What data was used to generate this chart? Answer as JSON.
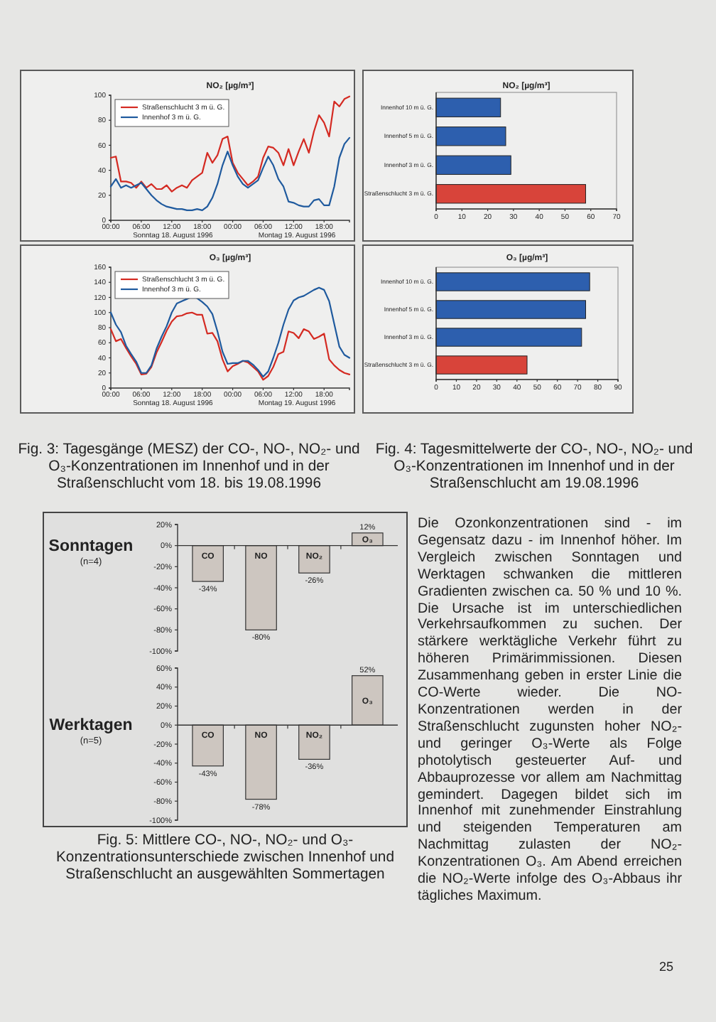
{
  "chart_data": [
    {
      "type": "line",
      "title": "NO₂ [µg/m³]",
      "x": [
        "1996-08-18T00:00",
        "1996-08-18T01:00",
        "1996-08-18T02:00",
        "1996-08-18T03:00",
        "1996-08-18T04:00",
        "1996-08-18T05:00",
        "1996-08-18T06:00",
        "1996-08-18T07:00",
        "1996-08-18T08:00",
        "1996-08-18T09:00",
        "1996-08-18T10:00",
        "1996-08-18T11:00",
        "1996-08-18T12:00",
        "1996-08-18T13:00",
        "1996-08-18T14:00",
        "1996-08-18T15:00",
        "1996-08-18T16:00",
        "1996-08-18T17:00",
        "1996-08-18T18:00",
        "1996-08-18T19:00",
        "1996-08-18T20:00",
        "1996-08-18T21:00",
        "1996-08-18T22:00",
        "1996-08-18T23:00",
        "1996-08-19T00:00",
        "1996-08-19T01:00",
        "1996-08-19T02:00",
        "1996-08-19T03:00",
        "1996-08-19T04:00",
        "1996-08-19T05:00",
        "1996-08-19T06:00",
        "1996-08-19T07:00",
        "1996-08-19T08:00",
        "1996-08-19T09:00",
        "1996-08-19T10:00",
        "1996-08-19T11:00",
        "1996-08-19T12:00",
        "1996-08-19T13:00",
        "1996-08-19T14:00",
        "1996-08-19T15:00",
        "1996-08-19T16:00",
        "1996-08-19T17:00",
        "1996-08-19T18:00",
        "1996-08-19T19:00",
        "1996-08-19T20:00",
        "1996-08-19T21:00",
        "1996-08-19T22:00",
        "1996-08-19T23:00"
      ],
      "xlim": [
        "1996-08-18T00:00",
        "1996-08-19T23:00"
      ],
      "xticks": [
        {
          "value": "1996-08-18T00:00",
          "label": "00:00"
        },
        {
          "value": "1996-08-18T06:00",
          "label": "06:00"
        },
        {
          "value": "1996-08-18T12:00",
          "label": "12:00"
        },
        {
          "value": "1996-08-18T18:00",
          "label": "18:00"
        },
        {
          "value": "1996-08-19T00:00",
          "label": "00:00"
        },
        {
          "value": "1996-08-19T06:00",
          "label": "06:00"
        },
        {
          "value": "1996-08-19T12:00",
          "label": "12:00"
        },
        {
          "value": "1996-08-19T18:00",
          "label": "18:00"
        }
      ],
      "ylim": [
        0,
        100
      ],
      "yticks": [
        0,
        20,
        40,
        60,
        80,
        100
      ],
      "legend": "top left",
      "series": [
        {
          "name": "Straßenschlucht 3 m ü. G.",
          "color": "#d42a22",
          "values": [
            50,
            51,
            31,
            31,
            30,
            26,
            31,
            26,
            29,
            25,
            25,
            28,
            23,
            26,
            28,
            26,
            32,
            35,
            38,
            54,
            46,
            52,
            65,
            67,
            46,
            38,
            33,
            28,
            31,
            35,
            50,
            59,
            58,
            54,
            44,
            57,
            44,
            55,
            65,
            54,
            71,
            84,
            78,
            67,
            95,
            91,
            97,
            99
          ]
        },
        {
          "name": "Innenhof 3 m ü. G.",
          "color": "#1f5a9e",
          "values": [
            27,
            33,
            26,
            28,
            26,
            28,
            30,
            25,
            20,
            16,
            13,
            11,
            10,
            9,
            9,
            8,
            8,
            9,
            8,
            11,
            18,
            29,
            44,
            55,
            44,
            35,
            29,
            26,
            29,
            32,
            42,
            51,
            44,
            33,
            27,
            15,
            14,
            12,
            11,
            11,
            16,
            17,
            12,
            12,
            27,
            50,
            61,
            66
          ]
        }
      ],
      "annotations": [
        "Sonntag 18. August 1996",
        "Montag 19. August 1996"
      ]
    },
    {
      "type": "line",
      "title": "O₃ [µg/m³]",
      "x": [
        "1996-08-18T00:00",
        "1996-08-18T01:00",
        "1996-08-18T02:00",
        "1996-08-18T03:00",
        "1996-08-18T04:00",
        "1996-08-18T05:00",
        "1996-08-18T06:00",
        "1996-08-18T07:00",
        "1996-08-18T08:00",
        "1996-08-18T09:00",
        "1996-08-18T10:00",
        "1996-08-18T11:00",
        "1996-08-18T12:00",
        "1996-08-18T13:00",
        "1996-08-18T14:00",
        "1996-08-18T15:00",
        "1996-08-18T16:00",
        "1996-08-18T17:00",
        "1996-08-18T18:00",
        "1996-08-18T19:00",
        "1996-08-18T20:00",
        "1996-08-18T21:00",
        "1996-08-18T22:00",
        "1996-08-18T23:00",
        "1996-08-19T00:00",
        "1996-08-19T01:00",
        "1996-08-19T02:00",
        "1996-08-19T03:00",
        "1996-08-19T04:00",
        "1996-08-19T05:00",
        "1996-08-19T06:00",
        "1996-08-19T07:00",
        "1996-08-19T08:00",
        "1996-08-19T09:00",
        "1996-08-19T10:00",
        "1996-08-19T11:00",
        "1996-08-19T12:00",
        "1996-08-19T13:00",
        "1996-08-19T14:00",
        "1996-08-19T15:00",
        "1996-08-19T16:00",
        "1996-08-19T17:00",
        "1996-08-19T18:00",
        "1996-08-19T19:00",
        "1996-08-19T20:00",
        "1996-08-19T21:00",
        "1996-08-19T22:00",
        "1996-08-19T23:00"
      ],
      "xlim": [
        "1996-08-18T00:00",
        "1996-08-19T23:00"
      ],
      "xticks": [
        {
          "value": "1996-08-18T00:00",
          "label": "00:00"
        },
        {
          "value": "1996-08-18T06:00",
          "label": "06:00"
        },
        {
          "value": "1996-08-18T12:00",
          "label": "12:00"
        },
        {
          "value": "1996-08-18T18:00",
          "label": "18:00"
        },
        {
          "value": "1996-08-19T00:00",
          "label": "00:00"
        },
        {
          "value": "1996-08-19T06:00",
          "label": "06:00"
        },
        {
          "value": "1996-08-19T12:00",
          "label": "12:00"
        },
        {
          "value": "1996-08-19T18:00",
          "label": "18:00"
        }
      ],
      "ylim": [
        0,
        160
      ],
      "yticks": [
        0,
        20,
        40,
        60,
        80,
        100,
        120,
        140,
        160
      ],
      "legend": "top left",
      "series": [
        {
          "name": "Straßenschlucht 3 m ü. G.",
          "color": "#d42a22",
          "values": [
            78,
            62,
            65,
            53,
            42,
            32,
            18,
            19,
            28,
            47,
            61,
            76,
            88,
            95,
            96,
            99,
            100,
            97,
            97,
            72,
            73,
            62,
            38,
            22,
            29,
            32,
            36,
            34,
            28,
            22,
            11,
            16,
            28,
            45,
            48,
            75,
            73,
            66,
            78,
            75,
            65,
            68,
            72,
            38,
            30,
            24,
            20,
            18
          ]
        },
        {
          "name": "Innenhof 3 m ü. G.",
          "color": "#1f5a9e",
          "values": [
            100,
            84,
            74,
            56,
            45,
            35,
            20,
            20,
            30,
            52,
            68,
            82,
            100,
            112,
            115,
            118,
            121,
            119,
            114,
            108,
            98,
            75,
            48,
            32,
            33,
            33,
            36,
            36,
            31,
            24,
            15,
            22,
            40,
            60,
            84,
            104,
            116,
            120,
            122,
            126,
            130,
            133,
            130,
            115,
            85,
            55,
            44,
            40
          ]
        }
      ],
      "annotations": [
        "Sonntag 18. August 1996",
        "Montag 19. August 1996",
        "Fig. 3: Tagesgänge (MESZ) der CO-, NO-, NO₂- und O₃-Konzentrationen im Innenhof und in der Straßenschlucht vom 18. bis 19.08.1996"
      ]
    },
    {
      "type": "bar",
      "orientation": "horizontal",
      "title": "NO₂ [µg/m³]",
      "categories": [
        "Innenhof 10 m ü. G.",
        "Innenhof 5 m ü. G.",
        "Innenhof 3 m ü. G.",
        "Straßenschlucht 3 m ü. G."
      ],
      "values": [
        25,
        27,
        29,
        58
      ],
      "colors": [
        "#2d5fae",
        "#2d5fae",
        "#2d5fae",
        "#d8443a"
      ],
      "xlim": [
        0,
        70
      ],
      "xticks": [
        0,
        10,
        20,
        30,
        40,
        50,
        60,
        70
      ]
    },
    {
      "type": "bar",
      "orientation": "horizontal",
      "title": "O₃ [µg/m³]",
      "categories": [
        "Innenhof 10 m ü. G.",
        "Innenhof 5 m ü. G.",
        "Innenhof 3 m ü. G.",
        "Straßenschlucht 3 m ü. G."
      ],
      "values": [
        76,
        74,
        72,
        45
      ],
      "colors": [
        "#2d5fae",
        "#2d5fae",
        "#2d5fae",
        "#d8443a"
      ],
      "xlim": [
        0,
        90
      ],
      "xticks": [
        0,
        10,
        20,
        30,
        40,
        50,
        60,
        70,
        80,
        90
      ],
      "annotations": [
        "Fig. 4: Tagesmittelwerte der CO-, NO-, NO₂- und O₃-Konzentrationen im Innenhof und in der Straßenschlucht am 19.08.1996"
      ]
    },
    {
      "type": "bar",
      "title": "Sonntagen",
      "subtitle": "(n=4)",
      "categories": [
        "CO",
        "NO",
        "NO₂",
        "O₃"
      ],
      "values": [
        -34,
        -80,
        -26,
        12
      ],
      "color": "#cdc6c0",
      "value_labels": [
        "-34%",
        "-80%",
        "-26%",
        "12%"
      ],
      "ylim": [
        -100,
        20
      ],
      "yticks": [
        {
          "value": 20,
          "label": "20%"
        },
        {
          "value": 0,
          "label": "0%"
        },
        {
          "value": -20,
          "label": "-20%"
        },
        {
          "value": -40,
          "label": "-40%"
        },
        {
          "value": -60,
          "label": "-60%"
        },
        {
          "value": -80,
          "label": "-80%"
        },
        {
          "value": -100,
          "label": "-100%"
        }
      ]
    },
    {
      "type": "bar",
      "title": "Werktagen",
      "subtitle": "(n=5)",
      "categories": [
        "CO",
        "NO",
        "NO₂",
        "O₃"
      ],
      "values": [
        -43,
        -78,
        -36,
        52
      ],
      "color": "#cdc6c0",
      "value_labels": [
        "-43%",
        "-78%",
        "-36%",
        "52%"
      ],
      "ylim": [
        -100,
        60
      ],
      "yticks": [
        {
          "value": 60,
          "label": "60%"
        },
        {
          "value": 40,
          "label": "40%"
        },
        {
          "value": 20,
          "label": "20%"
        },
        {
          "value": 0,
          "label": "0%"
        },
        {
          "value": -20,
          "label": "-20%"
        },
        {
          "value": -40,
          "label": "-40%"
        },
        {
          "value": -60,
          "label": "-60%"
        },
        {
          "value": -80,
          "label": "-80%"
        },
        {
          "value": -100,
          "label": "-100%"
        }
      ],
      "annotations": [
        "Fig. 5: Mittlere CO-, NO-, NO₂- und O₃-Konzentrationsunterschiede zwischen Innenhof und Straßenschlucht an ausgewählten Sommertagen"
      ]
    },
    {
      "type": "other",
      "annotations": [
        "Die Ozonkonzentrationen sind - im Gegensatz dazu - im Innenhof höher. Im Vergleich zwischen Sonntagen und Werktagen schwanken die mittleren Gradienten zwischen ca. 50 % und 10 %. Die Ursache ist im unterschiedlichen Verkehrsaufkommen zu suchen. Der stärkere werktägliche Verkehr führt zu höheren Primärimmissionen. Diesen Zusammenhang geben in erster Linie die CO-Werte wieder. Die NO-Konzentrationen werden in der Straßenschlucht zugunsten hoher NO₂- und geringer O₃-Werte als Folge photolytisch gesteuerter Auf- und Abbauprozesse vor allem am Nachmittag gemindert. Dagegen bildet sich im Innenhof mit zunehmender Einstrahlung und steigenden Temperaturen am Nachmittag zulasten der NO₂-Konzentrationen O₃. Am Abend erreichen die NO₂-Werte infolge des O₃-Abbaus ihr tägliches Maximum.",
        "25"
      ]
    }
  ]
}
